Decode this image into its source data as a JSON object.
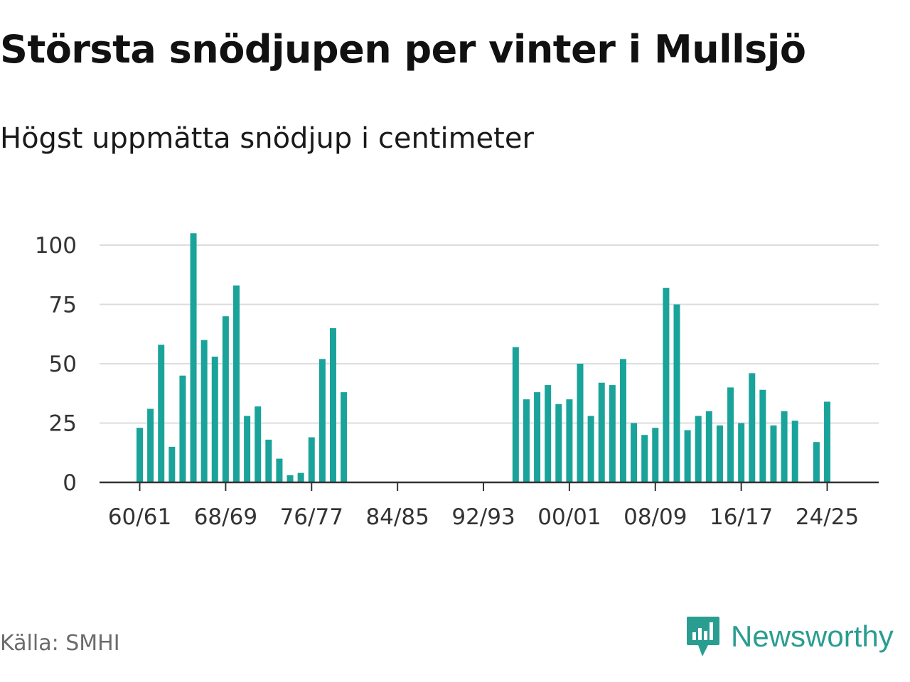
{
  "title": "Största snödjupen per vinter i Mullsjö",
  "subtitle": "Högst uppmätta snödjup i centimeter",
  "source": "Källa: SMHI",
  "brand": "Newsworthy",
  "colors": {
    "bar": "#1aa39a",
    "brand": "#2a9d91",
    "grid": "#dddddd",
    "axis": "#333333",
    "tick_text": "#333333"
  },
  "chart_data": {
    "type": "bar",
    "ylim": [
      0,
      110
    ],
    "yticks": [
      0,
      25,
      50,
      75,
      100
    ],
    "ytick_labels": [
      "0",
      "25",
      "50",
      "75",
      "100"
    ],
    "x_tick_labels": [
      "60/61",
      "68/69",
      "76/77",
      "84/85",
      "92/93",
      "00/01",
      "08/09",
      "16/17",
      "24/25"
    ],
    "x_tick_every": 8,
    "grid": true,
    "categories": [
      "60/61",
      "61/62",
      "62/63",
      "63/64",
      "64/65",
      "65/66",
      "66/67",
      "67/68",
      "68/69",
      "69/70",
      "70/71",
      "71/72",
      "72/73",
      "73/74",
      "74/75",
      "75/76",
      "76/77",
      "77/78",
      "78/79",
      "79/80",
      "80/81",
      "81/82",
      "82/83",
      "83/84",
      "84/85",
      "85/86",
      "86/87",
      "87/88",
      "88/89",
      "89/90",
      "90/91",
      "91/92",
      "92/93",
      "93/94",
      "94/95",
      "95/96",
      "96/97",
      "97/98",
      "98/99",
      "99/00",
      "00/01",
      "01/02",
      "02/03",
      "03/04",
      "04/05",
      "05/06",
      "06/07",
      "07/08",
      "08/09",
      "09/10",
      "10/11",
      "11/12",
      "12/13",
      "13/14",
      "14/15",
      "15/16",
      "16/17",
      "17/18",
      "18/19",
      "19/20",
      "20/21",
      "21/22",
      "22/23",
      "23/24",
      "24/25"
    ],
    "values": [
      23,
      31,
      58,
      15,
      45,
      105,
      60,
      53,
      70,
      83,
      28,
      32,
      18,
      10,
      3,
      4,
      19,
      52,
      65,
      38,
      null,
      null,
      null,
      null,
      null,
      null,
      null,
      null,
      null,
      null,
      null,
      null,
      null,
      null,
      null,
      57,
      35,
      38,
      41,
      33,
      35,
      50,
      28,
      42,
      41,
      52,
      25,
      20,
      23,
      82,
      75,
      22,
      28,
      30,
      24,
      40,
      25,
      46,
      39,
      24,
      30,
      26,
      null,
      17,
      34
    ]
  }
}
